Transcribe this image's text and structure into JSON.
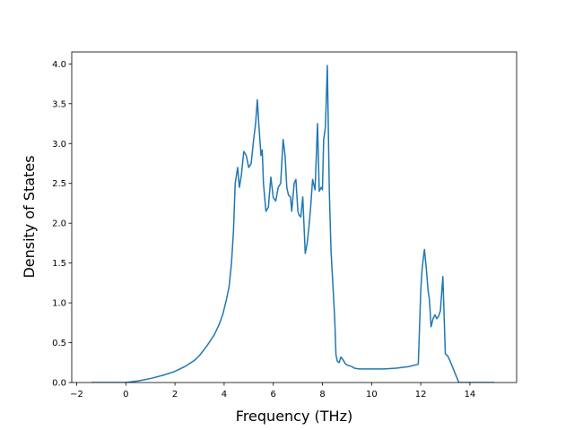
{
  "chart_data": {
    "type": "line",
    "title": "",
    "xlabel": "Frequency (THz)",
    "ylabel": "Density of States",
    "xlim": [
      -2.2,
      15.9
    ],
    "ylim": [
      0.0,
      4.15
    ],
    "xticks": [
      -2,
      0,
      2,
      4,
      6,
      8,
      10,
      12,
      14
    ],
    "xtick_labels": [
      "−2",
      "0",
      "2",
      "4",
      "6",
      "8",
      "10",
      "12",
      "14"
    ],
    "yticks": [
      0.0,
      0.5,
      1.0,
      1.5,
      2.0,
      2.5,
      3.0,
      3.5,
      4.0
    ],
    "ytick_labels": [
      "0.0",
      "0.5",
      "1.0",
      "1.5",
      "2.0",
      "2.5",
      "3.0",
      "3.5",
      "4.0"
    ],
    "grid": false,
    "legend": "none",
    "line_color": "#1f77b4",
    "series": [
      {
        "x": [
          -1.4,
          0.0,
          0.5,
          1.0,
          1.5,
          2.0,
          2.4,
          2.8,
          3.0,
          3.3,
          3.6,
          3.8,
          3.95,
          4.1,
          4.2,
          4.3,
          4.38,
          4.45,
          4.55,
          4.62,
          4.7,
          4.8,
          4.9,
          5.0,
          5.1,
          5.2,
          5.28,
          5.35,
          5.42,
          5.5,
          5.55,
          5.6,
          5.7,
          5.8,
          5.9,
          6.0,
          6.1,
          6.2,
          6.3,
          6.4,
          6.48,
          6.55,
          6.62,
          6.7,
          6.75,
          6.85,
          6.92,
          7.0,
          7.05,
          7.12,
          7.2,
          7.3,
          7.38,
          7.45,
          7.52,
          7.6,
          7.7,
          7.8,
          7.87,
          7.95,
          8.0,
          8.05,
          8.12,
          8.2,
          8.28,
          8.35,
          8.43,
          8.5,
          8.55,
          8.6,
          8.68,
          8.75,
          8.85,
          8.92,
          9.0,
          9.2,
          9.3,
          9.5,
          10.0,
          10.5,
          11.0,
          11.5,
          11.9,
          12.0,
          12.05,
          12.1,
          12.15,
          12.22,
          12.3,
          12.35,
          12.42,
          12.5,
          12.58,
          12.65,
          12.72,
          12.8,
          12.9,
          13.0,
          13.08,
          13.12,
          13.18,
          13.55,
          13.65,
          13.68,
          15.0
        ],
        "y": [
          0.0,
          0.0,
          0.02,
          0.05,
          0.09,
          0.14,
          0.2,
          0.28,
          0.34,
          0.46,
          0.6,
          0.73,
          0.86,
          1.05,
          1.2,
          1.5,
          1.9,
          2.5,
          2.7,
          2.45,
          2.6,
          2.9,
          2.85,
          2.7,
          2.75,
          3.05,
          3.25,
          3.55,
          3.2,
          2.85,
          2.92,
          2.5,
          2.15,
          2.2,
          2.58,
          2.32,
          2.28,
          2.45,
          2.5,
          3.05,
          2.85,
          2.45,
          2.35,
          2.33,
          2.15,
          2.5,
          2.55,
          2.15,
          2.1,
          2.08,
          2.33,
          1.62,
          1.75,
          1.95,
          2.2,
          2.55,
          2.42,
          3.25,
          2.4,
          2.45,
          2.42,
          3.05,
          3.2,
          3.98,
          2.4,
          1.65,
          1.2,
          0.8,
          0.35,
          0.27,
          0.25,
          0.32,
          0.28,
          0.24,
          0.22,
          0.2,
          0.18,
          0.17,
          0.17,
          0.17,
          0.18,
          0.2,
          0.23,
          1.15,
          1.4,
          1.55,
          1.67,
          1.45,
          1.15,
          1.05,
          0.7,
          0.8,
          0.85,
          0.8,
          0.83,
          0.9,
          1.33,
          0.36,
          0.34,
          0.32,
          0.28,
          0.0,
          0.0,
          0.0,
          0.0
        ]
      }
    ]
  }
}
